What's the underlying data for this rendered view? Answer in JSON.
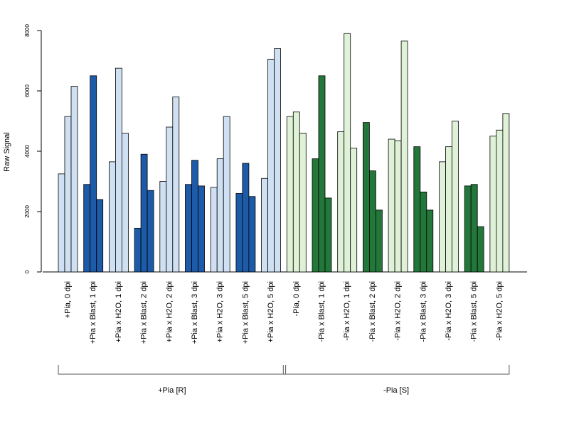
{
  "chart_data": {
    "type": "bar",
    "ylabel": "Raw Signal",
    "ylim": [
      0,
      8000
    ],
    "yticks": [
      "0",
      "2000",
      "4000",
      "6000",
      "8000"
    ],
    "categories": [
      "+Pia, 0 dpi",
      "+Pia x Blast, 1 dpi",
      "+Pia x H2O, 1 dpi",
      "+Pia x Blast, 2 dpi",
      "+Pia x H2O, 2 dpi",
      "+Pia x Blast, 3 dpi",
      "+Pia x H2O, 3 dpi",
      "+Pia x Blast, 5 dpi",
      "+Pia x H2O, 5 dpi",
      "-Pia, 0 dpi",
      "-Pia x Blast, 1 dpi",
      "-Pia x H2O, 1 dpi",
      "-Pia x Blast, 2 dpi",
      "-Pia x H2O, 2 dpi",
      "-Pia x Blast, 3 dpi",
      "-Pia x H2O, 3 dpi",
      "-Pia x Blast, 5 dpi",
      "-Pia x H2O, 5 dpi"
    ],
    "values": [
      [
        3250,
        5150,
        6150
      ],
      [
        2900,
        6500,
        2400
      ],
      [
        3650,
        6750,
        4600
      ],
      [
        1450,
        3900,
        2700
      ],
      [
        3000,
        4800,
        5800
      ],
      [
        2900,
        3700,
        2850
      ],
      [
        2800,
        3750,
        5150
      ],
      [
        2600,
        3600,
        2500
      ],
      [
        3100,
        7050,
        7400
      ],
      [
        5150,
        5300,
        4600
      ],
      [
        3750,
        6500,
        2450
      ],
      [
        4650,
        7900,
        4100
      ],
      [
        4950,
        3350,
        2050
      ],
      [
        4400,
        4350,
        7650
      ],
      [
        4150,
        2650,
        2050
      ],
      [
        3650,
        4150,
        5000
      ],
      [
        2850,
        2900,
        1500
      ],
      [
        4500,
        4700,
        5250
      ]
    ],
    "colors": [
      "#cfe0f3",
      "#1d5aa8",
      "#cfe0f3",
      "#1d5aa8",
      "#cfe0f3",
      "#1d5aa8",
      "#cfe0f3",
      "#1d5aa8",
      "#cfe0f3",
      "#dff2d8",
      "#23773a",
      "#dff2d8",
      "#23773a",
      "#dff2d8",
      "#23773a",
      "#dff2d8",
      "#23773a",
      "#dff2d8"
    ],
    "groups": [
      {
        "label": "+Pia [R]",
        "from": 0,
        "to": 8
      },
      {
        "label": "-Pia [S]",
        "from": 9,
        "to": 17
      }
    ]
  }
}
